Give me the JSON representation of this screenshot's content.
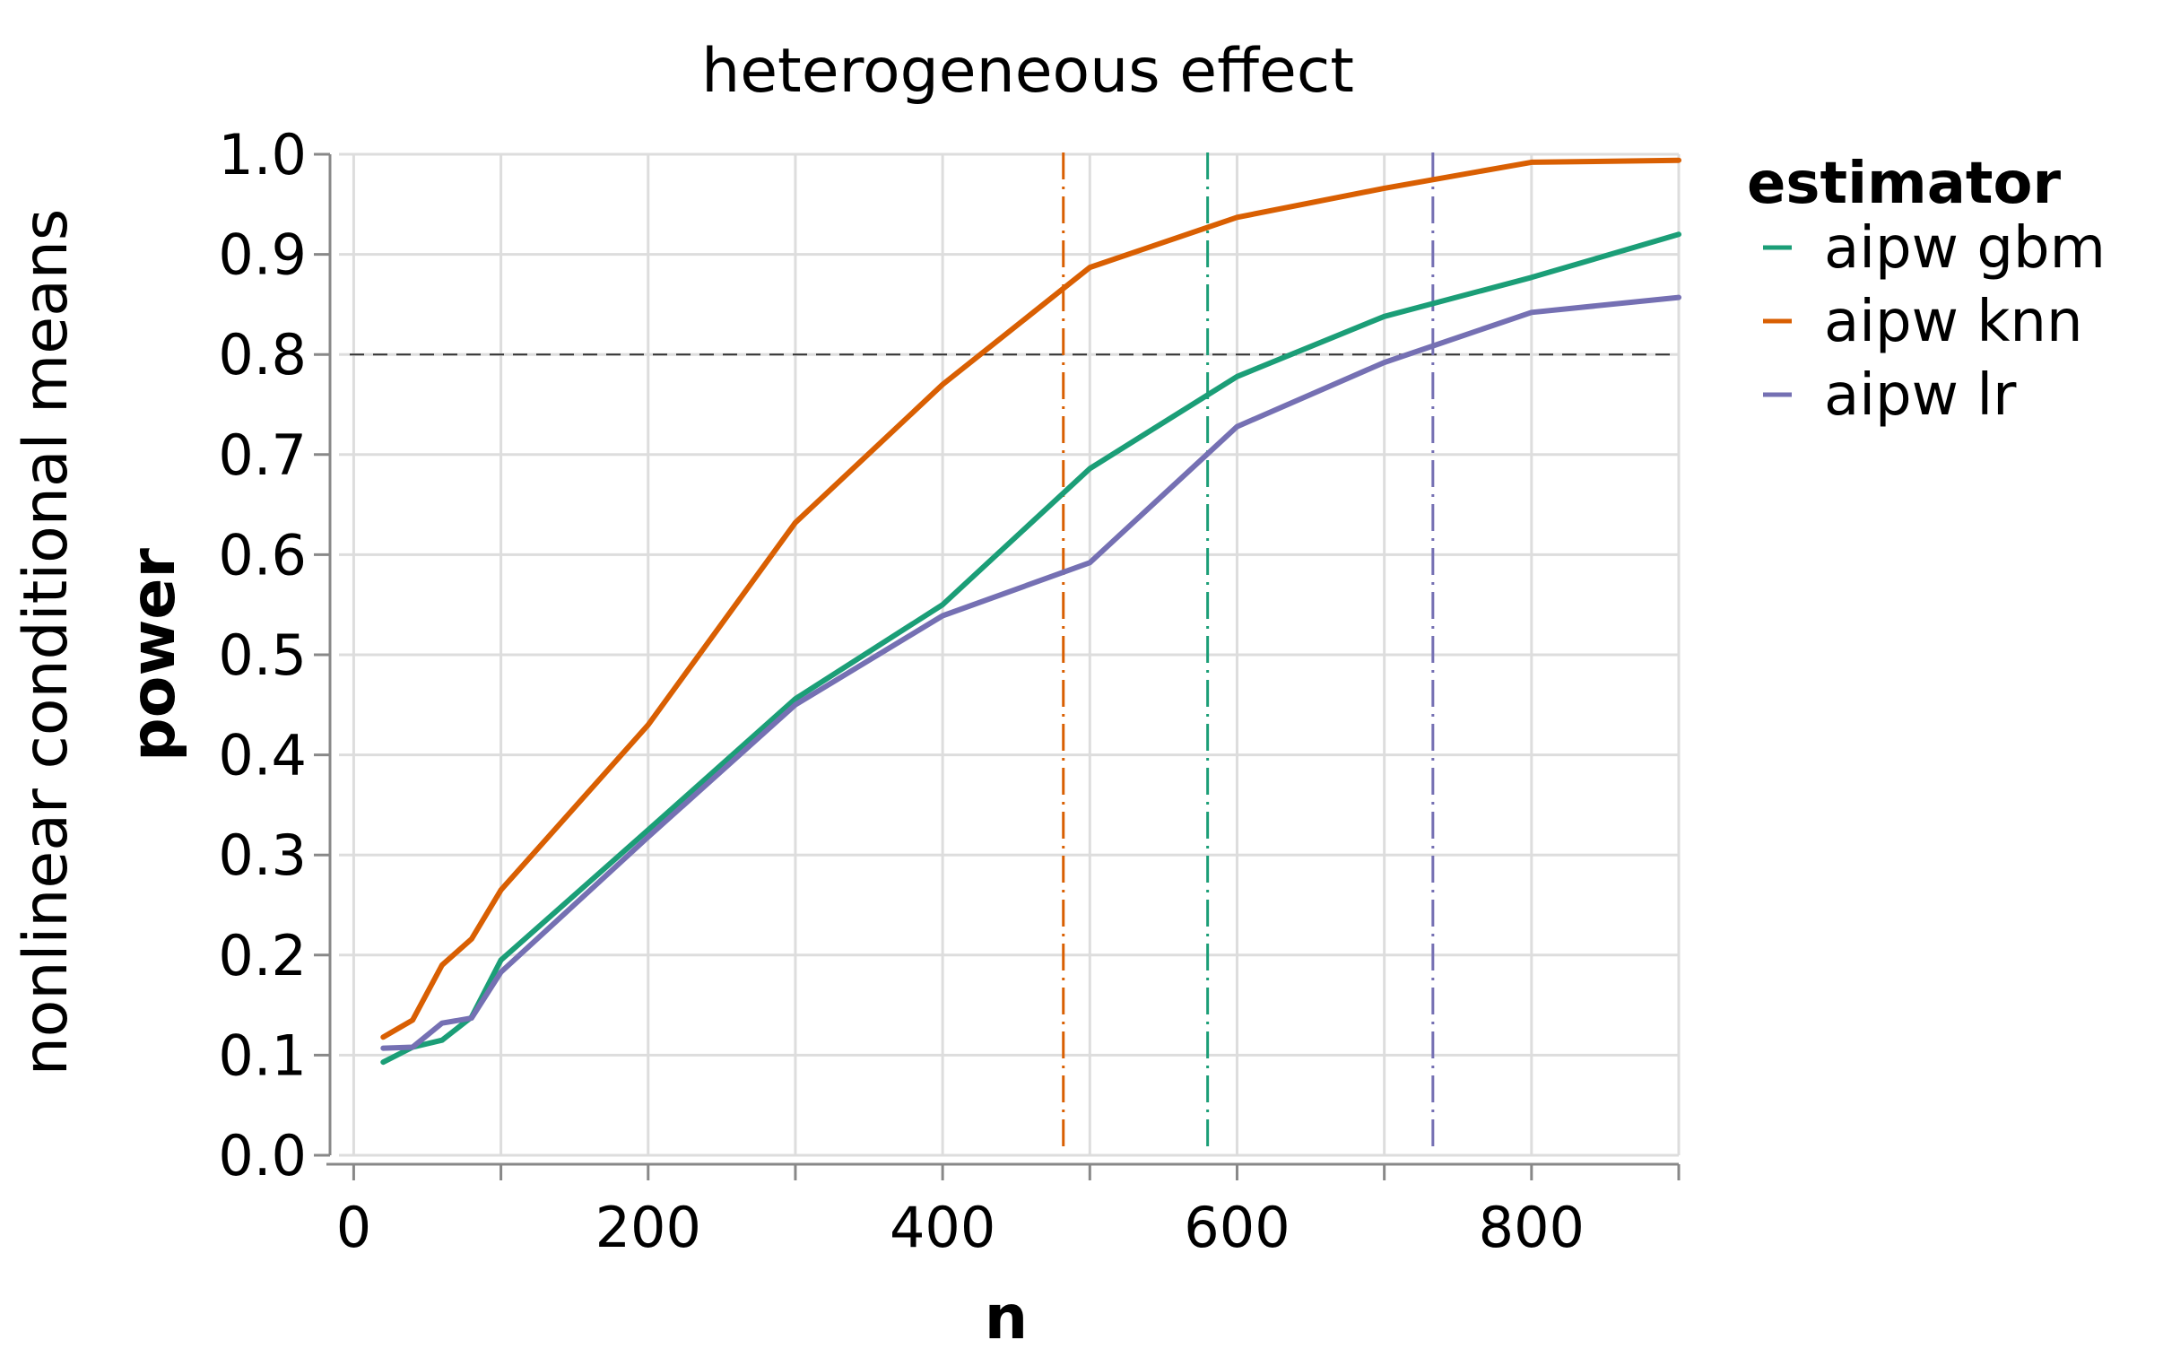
{
  "chart_data": {
    "type": "line",
    "title": "heterogeneous effect",
    "row_label": "nonlinear conditional means",
    "xlabel": "n",
    "ylabel": "power",
    "xlim": [
      -10,
      900
    ],
    "ylim": [
      0,
      1
    ],
    "x_ticks": [
      0,
      200,
      400,
      600,
      800
    ],
    "x_grid": [
      0,
      100,
      200,
      300,
      400,
      500,
      600,
      700,
      800,
      900
    ],
    "y_ticks": [
      0.0,
      0.1,
      0.2,
      0.3,
      0.4,
      0.5,
      0.6,
      0.7,
      0.8,
      0.9,
      1.0
    ],
    "y_tick_labels": [
      "0.0",
      "0.1",
      "0.2",
      "0.3",
      "0.4",
      "0.5",
      "0.6",
      "0.7",
      "0.8",
      "0.9",
      "1.0"
    ],
    "x_tick_labels": [
      "0",
      "200",
      "400",
      "600",
      "800"
    ],
    "grid": true,
    "legend": {
      "title": "estimator",
      "position": "right"
    },
    "series": [
      {
        "name": "aipw gbm",
        "color": "#1b9e77",
        "x": [
          20,
          40,
          60,
          80,
          100,
          200,
          300,
          400,
          500,
          600,
          700,
          800,
          900
        ],
        "y": [
          0.093,
          0.108,
          0.115,
          0.138,
          0.195,
          0.325,
          0.456,
          0.55,
          0.686,
          0.778,
          0.838,
          0.877,
          0.92
        ]
      },
      {
        "name": "aipw knn",
        "color": "#d95f02",
        "x": [
          20,
          40,
          60,
          80,
          100,
          200,
          300,
          400,
          500,
          600,
          700,
          800,
          900
        ],
        "y": [
          0.118,
          0.135,
          0.19,
          0.216,
          0.265,
          0.43,
          0.632,
          0.77,
          0.887,
          0.937,
          0.966,
          0.992,
          0.994
        ]
      },
      {
        "name": "aipw lr",
        "color": "#7570b3",
        "x": [
          20,
          40,
          60,
          80,
          100,
          200,
          300,
          400,
          500,
          600,
          700,
          800,
          900
        ],
        "y": [
          0.107,
          0.108,
          0.132,
          0.137,
          0.183,
          0.318,
          0.45,
          0.539,
          0.592,
          0.728,
          0.792,
          0.842,
          0.857
        ]
      }
    ],
    "reference_lines": {
      "horizontal": {
        "y": 0.8,
        "color": "#333333"
      },
      "vertical": [
        {
          "x": 482,
          "color": "#d95f02"
        },
        {
          "x": 580,
          "color": "#1b9e77"
        },
        {
          "x": 733,
          "color": "#7570b3"
        }
      ]
    }
  }
}
